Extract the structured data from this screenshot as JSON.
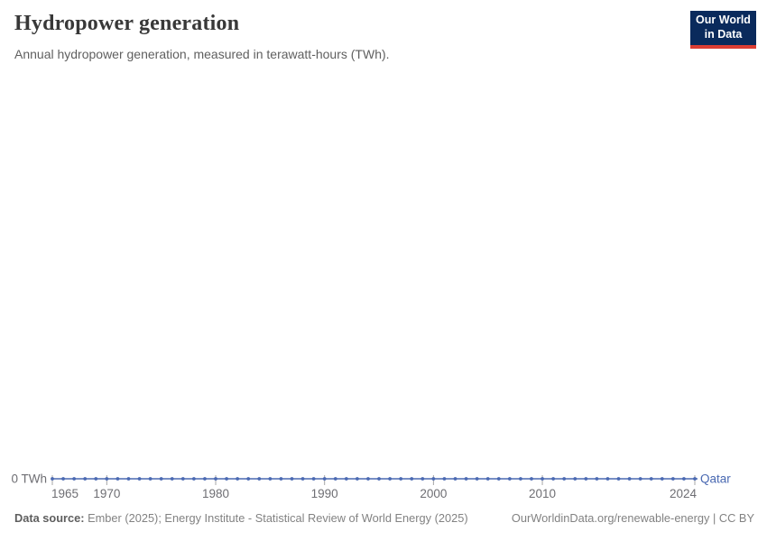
{
  "header": {
    "title": "Hydropower generation",
    "subtitle": "Annual hydropower generation, measured in terawatt-hours (TWh)."
  },
  "logo": {
    "line1": "Our World",
    "line2": "in Data",
    "bg_color": "#0a2a5c",
    "accent_color": "#dc3d33"
  },
  "chart_data": {
    "type": "line",
    "title": "Hydropower generation",
    "subtitle": "Annual hydropower generation, measured in terawatt-hours (TWh).",
    "unit": "TWh",
    "zero_label": "0 TWh",
    "grid": false,
    "ylim": [
      0,
      0
    ],
    "legend_position": "end-of-line",
    "x": [
      1965,
      1966,
      1967,
      1968,
      1969,
      1970,
      1971,
      1972,
      1973,
      1974,
      1975,
      1976,
      1977,
      1978,
      1979,
      1980,
      1981,
      1982,
      1983,
      1984,
      1985,
      1986,
      1987,
      1988,
      1989,
      1990,
      1991,
      1992,
      1993,
      1994,
      1995,
      1996,
      1997,
      1998,
      1999,
      2000,
      2001,
      2002,
      2003,
      2004,
      2005,
      2006,
      2007,
      2008,
      2009,
      2010,
      2011,
      2012,
      2013,
      2014,
      2015,
      2016,
      2017,
      2018,
      2019,
      2020,
      2021,
      2022,
      2023,
      2024
    ],
    "x_ticks": [
      1965,
      1970,
      1980,
      1990,
      2000,
      2010,
      2024
    ],
    "series": [
      {
        "name": "Qatar",
        "color": "#4a69b2",
        "values": [
          0,
          0,
          0,
          0,
          0,
          0,
          0,
          0,
          0,
          0,
          0,
          0,
          0,
          0,
          0,
          0,
          0,
          0,
          0,
          0,
          0,
          0,
          0,
          0,
          0,
          0,
          0,
          0,
          0,
          0,
          0,
          0,
          0,
          0,
          0,
          0,
          0,
          0,
          0,
          0,
          0,
          0,
          0,
          0,
          0,
          0,
          0,
          0,
          0,
          0,
          0,
          0,
          0,
          0,
          0,
          0,
          0,
          0,
          0,
          0
        ]
      }
    ],
    "axis_tick_color": "#a5a5a5",
    "axis_label_color": "#6e6e73"
  },
  "footer": {
    "source_label": "Data source:",
    "source_text": " Ember (2025); Energy Institute - Statistical Review of World Energy (2025)",
    "link_text": "OurWorldinData.org/renewable-energy | CC BY"
  }
}
